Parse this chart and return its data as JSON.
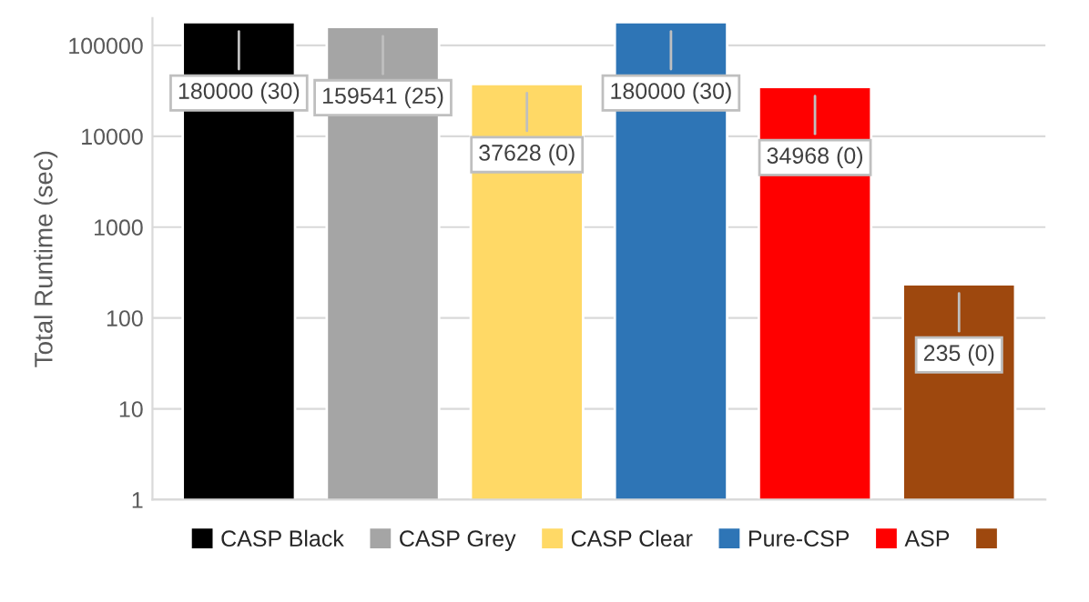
{
  "chart_data": {
    "type": "bar",
    "ylabel": "Total Runtime (sec)",
    "categories": [
      null,
      null,
      null,
      null,
      null,
      null
    ],
    "series": [
      {
        "name": "CASP Black",
        "color": "#000000",
        "values": [
          180000,
          null,
          null,
          null,
          null,
          null
        ],
        "value_labels": [
          "180000 (30)",
          null,
          null,
          null,
          null,
          null
        ]
      },
      {
        "name": "CASP Grey",
        "color": "#a5a5a5",
        "values": [
          null,
          159541,
          null,
          null,
          null,
          null
        ],
        "value_labels": [
          null,
          "159541 (25)",
          null,
          null,
          null,
          null
        ]
      },
      {
        "name": "CASP Clear",
        "color": "#ffd966",
        "values": [
          null,
          null,
          37628,
          null,
          null,
          null
        ],
        "value_labels": [
          null,
          null,
          "37628 (0)",
          null,
          null,
          null
        ]
      },
      {
        "name": "Pure-CSP",
        "color": "#2e75b6",
        "values": [
          null,
          null,
          null,
          180000,
          null,
          null
        ],
        "value_labels": [
          null,
          null,
          null,
          "180000 (30)",
          null,
          null
        ]
      },
      {
        "name": "ASP",
        "color": "#ff0000",
        "values": [
          null,
          null,
          null,
          null,
          34968,
          null
        ],
        "value_labels": [
          null,
          null,
          null,
          null,
          "34968 (0)",
          null
        ]
      },
      {
        "color": "#9e480e",
        "values": [
          null,
          null,
          null,
          null,
          null,
          235
        ],
        "value_labels": [
          null,
          null,
          null,
          null,
          null,
          "235 (0)"
        ]
      }
    ],
    "log": true,
    "ylim": [
      1,
      200000
    ],
    "yticks": [
      1,
      10,
      100,
      1000,
      10000,
      100000
    ],
    "grid": "y",
    "legend": "bottom"
  }
}
